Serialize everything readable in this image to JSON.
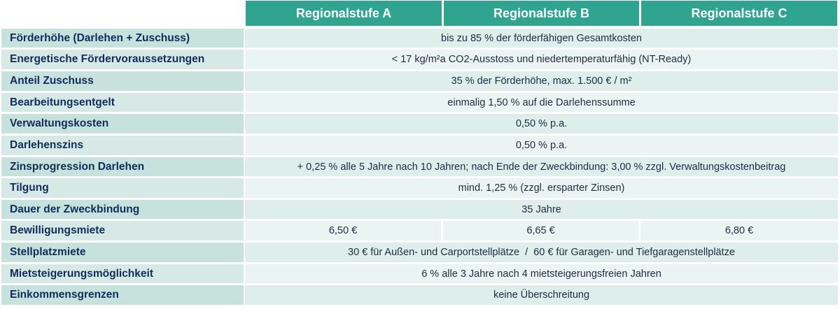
{
  "header": {
    "col_a": "Regionalstufe A",
    "col_b": "Regionalstufe B",
    "col_c": "Regionalstufe C"
  },
  "rows": [
    {
      "label": "Förderhöhe (Darlehen + Zuschuss)",
      "value": "bis zu 85 % der förderfähigen Gesamtkosten"
    },
    {
      "label": "Energetische Fördervoraussetzungen",
      "value": "< 17 kg/m²a CO2-Ausstoss und niedertemperaturfähig (NT-Ready)"
    },
    {
      "label": "Anteil Zuschuss",
      "value": "35 % der Förderhöhe, max. 1.500 € / m²"
    },
    {
      "label": "Bearbeitungsentgelt",
      "value": "einmalig 1,50 % auf die Darlehenssumme"
    },
    {
      "label": "Verwaltungskosten",
      "value": "0,50 % p.a."
    },
    {
      "label": "Darlehenszins",
      "value": "0,50 % p.a."
    },
    {
      "label": "Zinsprogression Darlehen",
      "value": "+ 0,25 % alle 5 Jahre nach 10 Jahren; nach Ende der Zweckbindung: 3,00 % zzgl. Verwaltungskostenbeitrag"
    },
    {
      "label": "Tilgung",
      "value": "mind. 1,25 % (zzgl. ersparter Zinsen)"
    },
    {
      "label": "Dauer der Zweckbindung",
      "value": "35 Jahre"
    },
    {
      "label": "Bewilligungsmiete",
      "value_a": "6,50 €",
      "value_b": "6,65 €",
      "value_c": "6,80 €"
    },
    {
      "label": "Stellplatzmiete",
      "value": "30 € für Außen- und Carportstellplätze  /  60 € für Garagen- und Tiefgaragenstellplätze"
    },
    {
      "label": "Mietsteigerungsmöglichkeit",
      "value": "6 % alle 3 Jahre nach 4 mietsteigerungsfreien Jahren"
    },
    {
      "label": "Einkommensgrenzen",
      "value": "keine Überschreitung"
    }
  ],
  "colors": {
    "header_bg": "#2fa58f",
    "label_bg": "#c7e1dc",
    "value_bg": "#ddeeeb",
    "label_text": "#0f2d5c"
  }
}
